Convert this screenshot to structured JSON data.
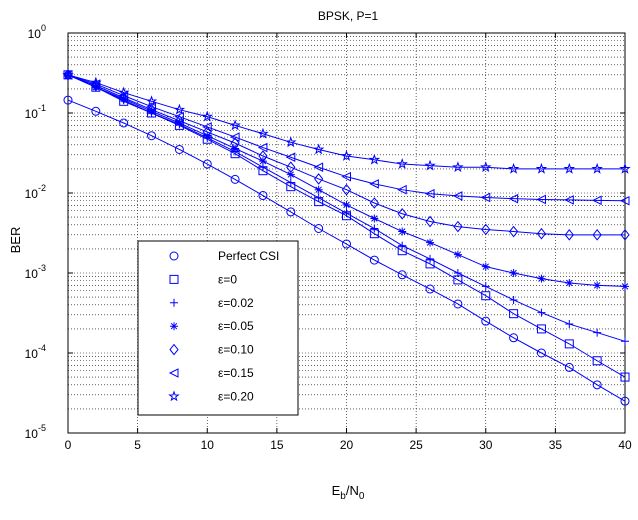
{
  "chart_data": {
    "type": "line",
    "title": "BPSK, P=1",
    "xlabel_main": "E",
    "xlabel_sub1": "b",
    "xlabel_mid": "/N",
    "xlabel_sub2": "0",
    "ylabel": "BER",
    "xlim": [
      0,
      40
    ],
    "ylim": [
      1e-05,
      1
    ],
    "yscale": "log",
    "grid": true,
    "legend_position": "lower-left",
    "line_color": "#0000ff",
    "x": [
      0,
      2,
      4,
      6,
      8,
      10,
      12,
      14,
      16,
      18,
      20,
      22,
      24,
      26,
      28,
      30,
      32,
      34,
      36,
      38,
      40
    ],
    "x_ticks": [
      "0",
      "5",
      "10",
      "15",
      "20",
      "25",
      "30",
      "35",
      "40"
    ],
    "y_ticks": [
      {
        "base": "10",
        "exp": "0"
      },
      {
        "base": "10",
        "exp": "-1"
      },
      {
        "base": "10",
        "exp": "-2"
      },
      {
        "base": "10",
        "exp": "-3"
      },
      {
        "base": "10",
        "exp": "-4"
      },
      {
        "base": "10",
        "exp": "-5"
      }
    ],
    "series": [
      {
        "name": "Perfect CSI",
        "marker": "circle",
        "values": [
          0.145,
          0.105,
          0.075,
          0.052,
          0.035,
          0.023,
          0.0148,
          0.0093,
          0.0058,
          0.0036,
          0.0023,
          0.00145,
          0.00095,
          0.00063,
          0.00041,
          0.00025,
          0.000155,
          0.0001,
          6.6e-05,
          4e-05,
          2.5e-05
        ]
      },
      {
        "name": "ε=0",
        "marker": "square",
        "values": [
          0.3,
          0.21,
          0.14,
          0.1,
          0.07,
          0.047,
          0.031,
          0.019,
          0.012,
          0.0078,
          0.0052,
          0.0031,
          0.0019,
          0.0013,
          0.00082,
          0.00052,
          0.00031,
          0.0002,
          0.00013,
          8e-05,
          5e-05
        ]
      },
      {
        "name": "ε=0.02",
        "marker": "plus",
        "values": [
          0.3,
          0.21,
          0.145,
          0.1,
          0.072,
          0.049,
          0.033,
          0.021,
          0.0135,
          0.0087,
          0.0056,
          0.0036,
          0.0022,
          0.0015,
          0.001,
          0.00068,
          0.00046,
          0.00032,
          0.00023,
          0.00018,
          0.00014
        ]
      },
      {
        "name": "ε=0.05",
        "marker": "asterisk",
        "values": [
          0.3,
          0.21,
          0.15,
          0.105,
          0.075,
          0.052,
          0.036,
          0.025,
          0.017,
          0.011,
          0.0071,
          0.0048,
          0.0033,
          0.0024,
          0.0017,
          0.0012,
          0.001,
          0.00085,
          0.00075,
          0.0007,
          0.00068
        ]
      },
      {
        "name": "ε=0.10",
        "marker": "diamond",
        "values": [
          0.3,
          0.22,
          0.155,
          0.11,
          0.08,
          0.058,
          0.042,
          0.029,
          0.021,
          0.015,
          0.011,
          0.0075,
          0.0055,
          0.0044,
          0.0038,
          0.0035,
          0.0033,
          0.0031,
          0.003,
          0.003,
          0.003
        ]
      },
      {
        "name": "ε=0.15",
        "marker": "triangle-left",
        "values": [
          0.3,
          0.23,
          0.165,
          0.12,
          0.09,
          0.067,
          0.05,
          0.037,
          0.028,
          0.021,
          0.016,
          0.013,
          0.011,
          0.0098,
          0.0092,
          0.0088,
          0.0085,
          0.0083,
          0.0082,
          0.0081,
          0.008
        ]
      },
      {
        "name": "ε=0.20",
        "marker": "star",
        "values": [
          0.3,
          0.24,
          0.18,
          0.14,
          0.11,
          0.09,
          0.07,
          0.055,
          0.043,
          0.035,
          0.029,
          0.026,
          0.023,
          0.022,
          0.021,
          0.021,
          0.02,
          0.02,
          0.02,
          0.02,
          0.02
        ]
      }
    ]
  }
}
